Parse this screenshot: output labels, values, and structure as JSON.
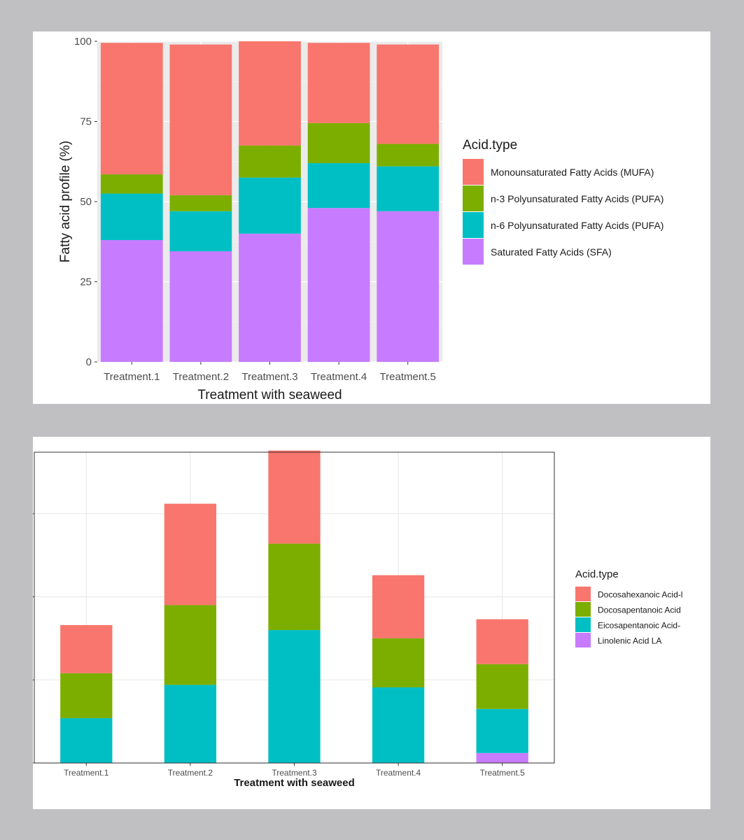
{
  "colors": {
    "red": "#f8766d",
    "green": "#7cae00",
    "cyan": "#00bfc4",
    "purple": "#c77cff",
    "panel_bg_1": "#ebebeb",
    "grid_major_1": "#ffffff",
    "grid_2": "#ebebeb",
    "border_2": "#333333"
  },
  "chart_data": [
    {
      "type": "bar",
      "stacked": true,
      "title": "",
      "xlabel": "Treatment with seaweed",
      "ylabel": "Fatty acid profile (%)",
      "ylim": [
        0,
        100
      ],
      "yticks": [
        "0",
        "25",
        "50",
        "75",
        "100"
      ],
      "ytick_values": [
        0,
        25,
        50,
        75,
        100
      ],
      "grid": true,
      "categories": [
        "Treatment.1",
        "Treatment.2",
        "Treatment.3",
        "Treatment.4",
        "Treatment.5"
      ],
      "legend_title": "Acid.type",
      "legend_position": "right",
      "series": [
        {
          "name": "Saturated Fatty Acids (SFA)",
          "color": "#c77cff",
          "values": [
            38,
            34.5,
            40,
            48,
            47
          ]
        },
        {
          "name": "n-6 Polyunsaturated Fatty Acids (PUFA)",
          "color": "#00bfc4",
          "values": [
            14.5,
            12.5,
            17.5,
            14,
            14
          ]
        },
        {
          "name": "n-3 Polyunsaturated Fatty Acids (PUFA)",
          "color": "#7cae00",
          "values": [
            6,
            5,
            10,
            12.5,
            7
          ]
        },
        {
          "name": "Monounsaturated Fatty Acids (MUFA)",
          "color": "#f8766d",
          "values": [
            41,
            47,
            32.5,
            25,
            31
          ]
        }
      ],
      "legend_order": [
        3,
        2,
        1,
        0
      ]
    },
    {
      "type": "bar",
      "stacked": true,
      "title": "",
      "xlabel": "Treatment with seaweed",
      "ylabel": "",
      "ylim": [
        0,
        3.74
      ],
      "yticks": [
        "",
        "",
        "",
        ""
      ],
      "ytick_values": [
        0,
        1,
        2,
        3
      ],
      "grid": true,
      "categories": [
        "Treatment.1",
        "Treatment.2",
        "Treatment.3",
        "Treatment.4",
        "Treatment.5"
      ],
      "legend_title": "Acid.type",
      "legend_position": "right",
      "series": [
        {
          "name": "Linolenic Acid LA",
          "color": "#c77cff",
          "values": [
            0,
            0,
            0,
            0,
            0.12
          ]
        },
        {
          "name": "Eicosapentanoic Acid-",
          "color": "#00bfc4",
          "values": [
            0.54,
            0.94,
            1.6,
            0.91,
            0.53
          ]
        },
        {
          "name": "Docosapentanoic Acid",
          "color": "#7cae00",
          "values": [
            0.54,
            0.96,
            1.04,
            0.59,
            0.54
          ]
        },
        {
          "name": "Docosahexanoic Acid-l",
          "color": "#f8766d",
          "values": [
            0.58,
            1.22,
            1.12,
            0.76,
            0.54
          ]
        }
      ],
      "legend_order": [
        3,
        2,
        1,
        0
      ]
    }
  ]
}
